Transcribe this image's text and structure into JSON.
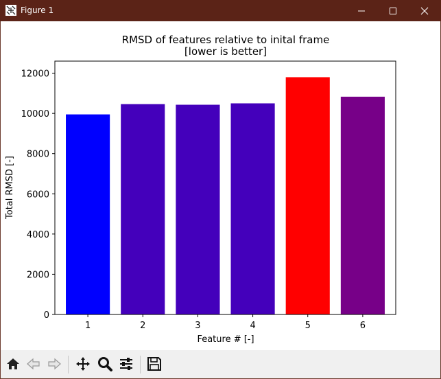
{
  "window": {
    "title": "Figure 1",
    "titlebar_color": "#5b2317",
    "controls": [
      "minimize-icon",
      "maximize-icon",
      "close-icon"
    ]
  },
  "toolbar": {
    "buttons": [
      "home-icon",
      "back-icon",
      "forward-icon",
      "pan-icon",
      "zoom-icon",
      "configure-subplots-icon",
      "save-icon"
    ]
  },
  "chart_data": {
    "type": "bar",
    "title": "RMSD of features relative to inital frame",
    "subtitle": "[lower is better]",
    "xlabel": "Feature # [-]",
    "ylabel": "Total RMSD [-]",
    "categories": [
      "1",
      "2",
      "3",
      "4",
      "5",
      "6"
    ],
    "values": [
      9950,
      10460,
      10430,
      10500,
      11800,
      10830
    ],
    "colors": [
      "#0000ff",
      "#4400bb",
      "#4400bb",
      "#4400bb",
      "#ff0000",
      "#770088"
    ],
    "ylim": [
      0,
      12600
    ],
    "yticks": [
      0,
      2000,
      4000,
      6000,
      8000,
      10000,
      12000
    ],
    "grid": false,
    "legend": "none"
  }
}
